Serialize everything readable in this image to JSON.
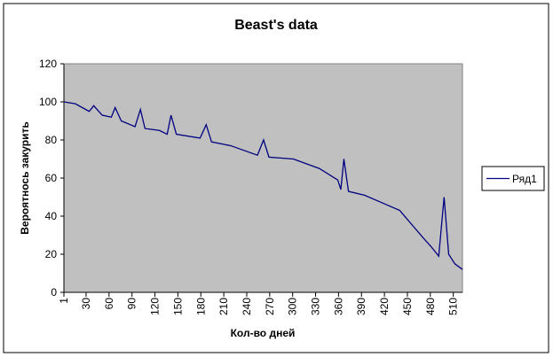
{
  "chart_data": {
    "type": "line",
    "title": "Beast's data",
    "x_label": "Кол-во дней",
    "y_label": "Вероятнось закурить",
    "x": [
      1,
      16,
      34,
      40,
      51,
      63,
      68,
      76,
      94,
      101,
      107,
      126,
      136,
      141,
      148,
      179,
      187,
      194,
      219,
      254,
      262,
      269,
      301,
      335,
      359,
      363,
      367,
      373,
      394,
      417,
      440,
      457,
      472,
      481,
      491,
      498,
      504,
      512,
      522
    ],
    "series": [
      {
        "name": "Ряд1",
        "color": "#000080",
        "values": [
          100,
          99,
          95,
          98,
          93,
          92,
          97,
          90,
          87,
          96,
          86,
          85,
          83,
          93,
          83,
          81,
          88,
          79,
          77,
          72,
          80,
          71,
          70,
          65,
          59,
          54,
          70,
          53,
          51,
          47,
          43,
          35,
          28,
          24,
          19,
          50,
          20,
          15,
          12
        ]
      }
    ],
    "xlim": [
      1,
      522
    ],
    "xticks": [
      1,
      30,
      60,
      90,
      120,
      150,
      180,
      210,
      240,
      270,
      300,
      330,
      360,
      390,
      420,
      450,
      480,
      510
    ],
    "ylim": [
      0,
      120
    ],
    "yticks": [
      0,
      20,
      40,
      60,
      80,
      100,
      120
    ],
    "plot_background": "#c0c0c0",
    "legend": "right"
  }
}
